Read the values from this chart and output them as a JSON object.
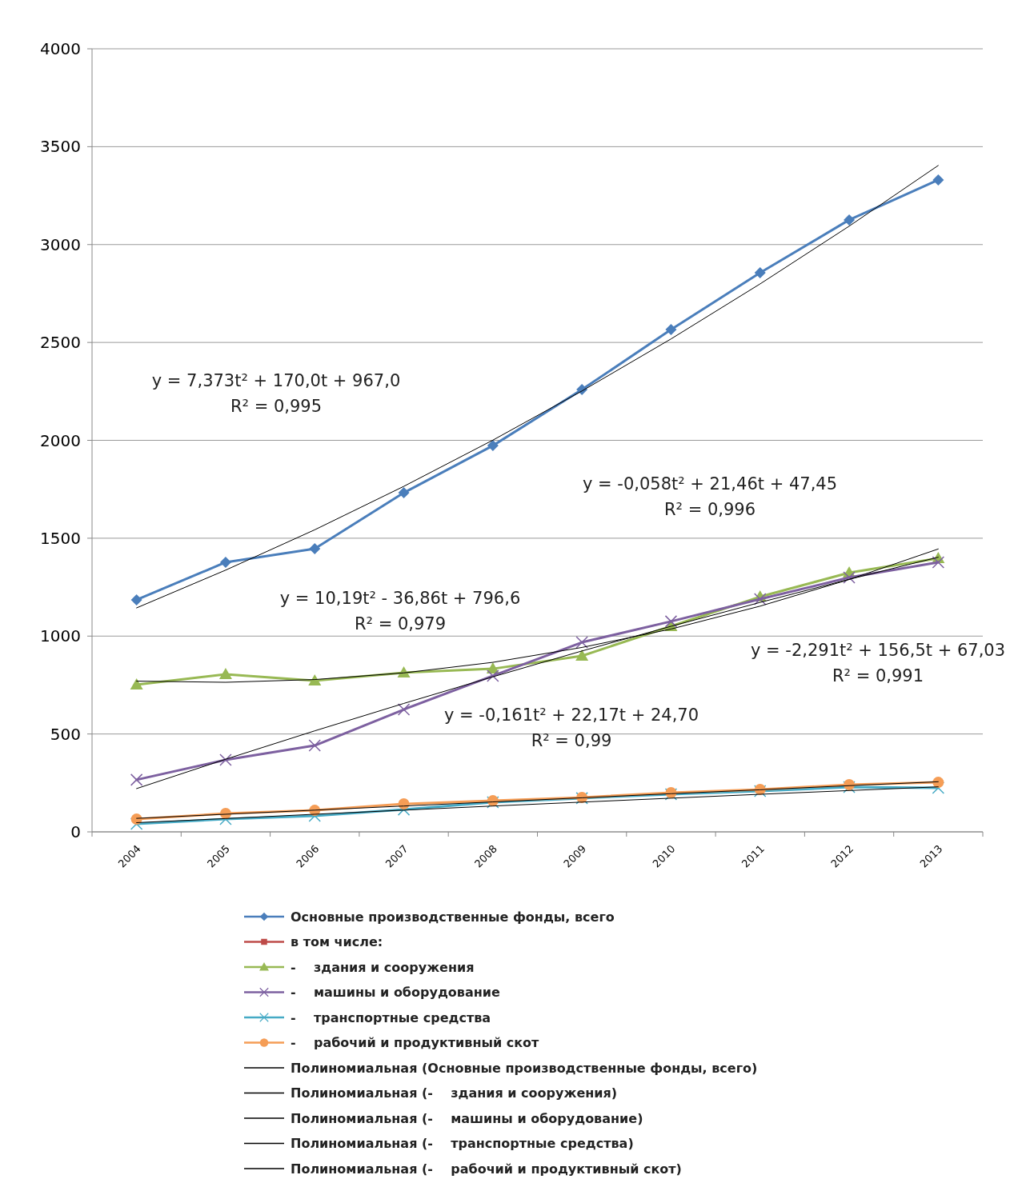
{
  "chart_data": {
    "type": "line",
    "categories": [
      "2004",
      "2005",
      "2006",
      "2007",
      "2008",
      "2009",
      "2010",
      "2011",
      "2012",
      "2013"
    ],
    "ylim": [
      0,
      4000
    ],
    "yticks": [
      0,
      500,
      1000,
      1500,
      2000,
      2500,
      3000,
      3500,
      4000
    ],
    "grid": "y",
    "legend": "bottom",
    "line_style": "solid",
    "series": [
      {
        "name": "Основные производственные фонды, всего",
        "color": "#4a7ebb",
        "marker": "diamond",
        "values": [
          1185,
          1377,
          1446,
          1732,
          1973,
          2259,
          2566,
          2856,
          3126,
          3330
        ]
      },
      {
        "name": "в том числе:",
        "color": "#be4b48",
        "marker": "square",
        "values": [
          null,
          null,
          null,
          null,
          null,
          null,
          null,
          null,
          null,
          null
        ]
      },
      {
        "name": "-    здания и сооружения",
        "color": "#98b954",
        "marker": "triangle",
        "values": [
          752,
          805,
          772,
          813,
          833,
          899,
          1050,
          1201,
          1324,
          1397
        ]
      },
      {
        "name": "-    машины и оборудование",
        "color": "#7d60a0",
        "marker": "cross",
        "values": [
          266,
          368,
          441,
          625,
          797,
          968,
          1075,
          1189,
          1299,
          1377
        ]
      },
      {
        "name": "-    транспортные средства",
        "color": "#46aac5",
        "marker": "cross",
        "values": [
          41,
          65,
          82,
          114,
          151,
          172,
          192,
          208,
          229,
          225
        ]
      },
      {
        "name": "-    рабочий и продуктивный скот",
        "color": "#f59d56",
        "marker": "circle",
        "values": [
          65,
          94,
          110,
          143,
          159,
          176,
          200,
          217,
          241,
          253
        ]
      },
      {
        "name": "Полиномиальная (Основные производственные фонды, всего)",
        "color": "#000000",
        "marker": "none",
        "values": [
          1144,
          1337,
          1543,
          1765,
          2001,
          2252,
          2518,
          2799,
          3094,
          3404
        ]
      },
      {
        "name": "Полиномиальная (-    здания и сооружения)",
        "color": "#000000",
        "marker": "none",
        "values": [
          770,
          764,
          778,
          812,
          866,
          942,
          1036,
          1153,
          1289,
          1445
        ]
      },
      {
        "name": "Полиномиальная (-    машины и оборудование)",
        "color": "#000000",
        "marker": "none",
        "values": [
          221,
          371,
          516,
          656,
          792,
          924,
          1050,
          1172,
          1290,
          1403
        ]
      },
      {
        "name": "Полиномиальная (-    транспортные средства)",
        "color": "#000000",
        "marker": "none",
        "values": [
          47,
          68,
          90,
          111,
          132,
          152,
          172,
          192,
          211,
          230
        ]
      },
      {
        "name": "Полиномиальная (-    рабочий и продуктивный скот)",
        "color": "#000000",
        "marker": "none",
        "values": [
          69,
          90,
          111,
          132,
          153,
          174,
          195,
          215,
          236,
          256
        ]
      }
    ],
    "annotations": [
      "y = 7,373t² + 170,0t + 967,0\nR² = 0,995",
      "y = -0,058t² + 21,46t + 47,45\nR² = 0,996",
      "y = 10,19t² - 36,86t + 796,6\nR² = 0,979",
      "y = -2,291t² + 156,5t + 67,03\nR² = 0,991",
      "y = -0,161t² + 22,17t + 24,70\nR² = 0,99"
    ]
  }
}
